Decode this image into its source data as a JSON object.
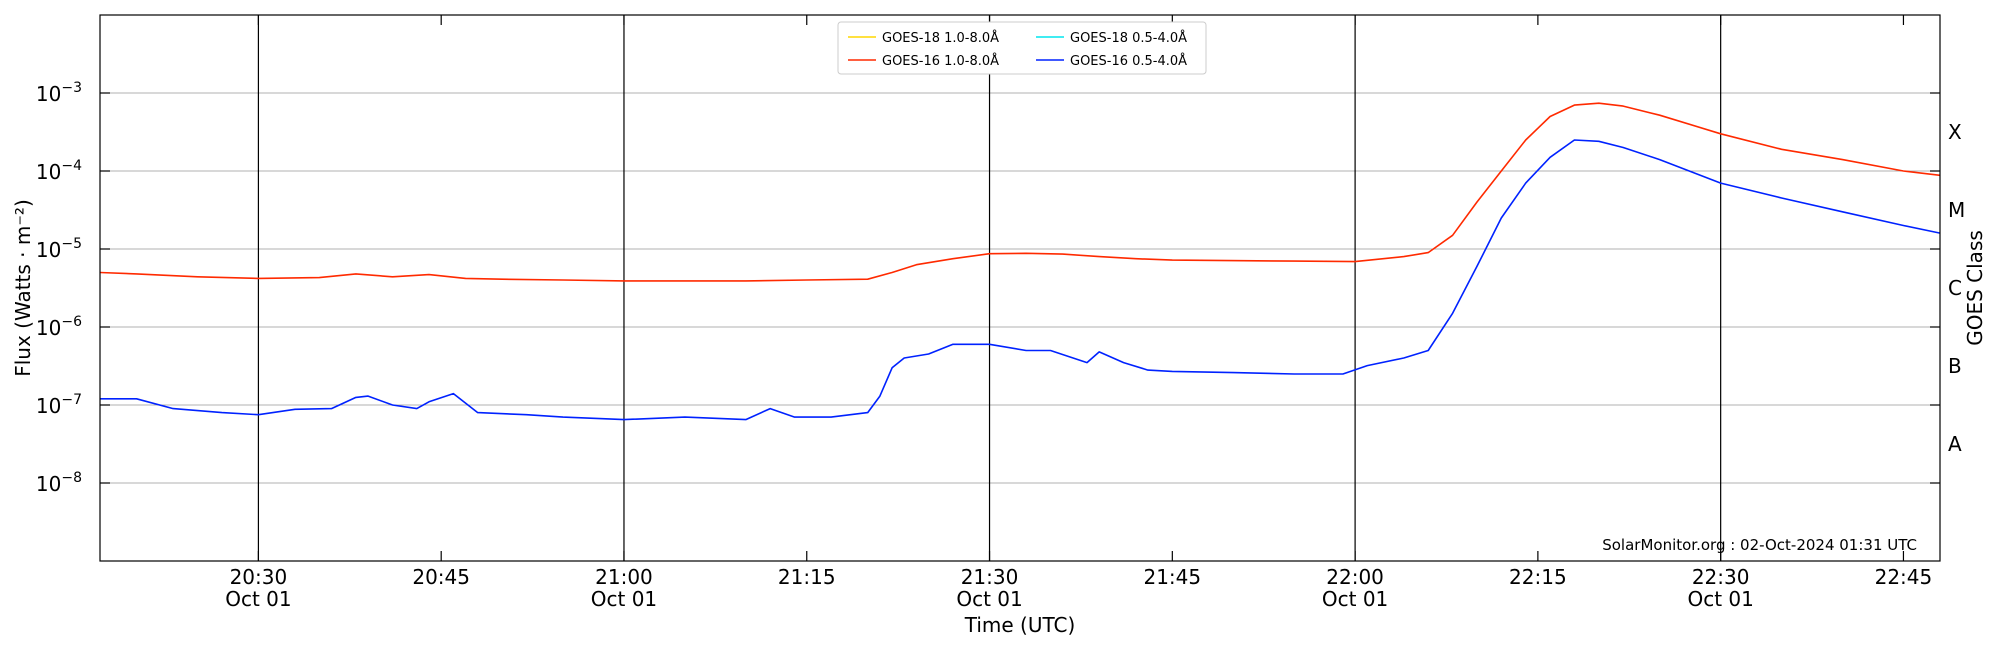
{
  "chart_data": {
    "type": "line",
    "title": "",
    "xlabel": "Time (UTC)",
    "ylabel": "Flux (Watts · m⁻²)",
    "ylabel_right": "GOES Class",
    "yscale": "log",
    "ylim": [
      1e-09,
      0.01
    ],
    "xlim": [
      "2024-10-01 20:17",
      "2024-10-01 22:48"
    ],
    "grid": "horizontal at decades",
    "legend_position": "top-center",
    "x_ticks": [
      {
        "time": "2024-10-01 20:30",
        "label": "20:30",
        "sublabel": "Oct 01",
        "vline": true
      },
      {
        "time": "2024-10-01 20:45",
        "label": "20:45",
        "sublabel": "",
        "vline": false
      },
      {
        "time": "2024-10-01 21:00",
        "label": "21:00",
        "sublabel": "Oct 01",
        "vline": true
      },
      {
        "time": "2024-10-01 21:15",
        "label": "21:15",
        "sublabel": "",
        "vline": false
      },
      {
        "time": "2024-10-01 21:30",
        "label": "21:30",
        "sublabel": "Oct 01",
        "vline": true
      },
      {
        "time": "2024-10-01 21:45",
        "label": "21:45",
        "sublabel": "",
        "vline": false
      },
      {
        "time": "2024-10-01 22:00",
        "label": "22:00",
        "sublabel": "Oct 01",
        "vline": true
      },
      {
        "time": "2024-10-01 22:15",
        "label": "22:15",
        "sublabel": "",
        "vline": false
      },
      {
        "time": "2024-10-01 22:30",
        "label": "22:30",
        "sublabel": "Oct 01",
        "vline": true
      },
      {
        "time": "2024-10-01 22:45",
        "label": "22:45",
        "sublabel": "",
        "vline": false
      }
    ],
    "y_ticks": [
      {
        "value": 0.001,
        "base": "10",
        "exp": "−3"
      },
      {
        "value": 0.0001,
        "base": "10",
        "exp": "−4"
      },
      {
        "value": 1e-05,
        "base": "10",
        "exp": "−5"
      },
      {
        "value": 1e-06,
        "base": "10",
        "exp": "−6"
      },
      {
        "value": 1e-07,
        "base": "10",
        "exp": "−7"
      },
      {
        "value": 1e-08,
        "base": "10",
        "exp": "−8"
      }
    ],
    "goes_classes": [
      {
        "label": "X",
        "value": 0.000316
      },
      {
        "label": "M",
        "value": 3.16e-05
      },
      {
        "label": "C",
        "value": 3.16e-06
      },
      {
        "label": "B",
        "value": 3.16e-07
      },
      {
        "label": "A",
        "value": 3.16e-08
      }
    ],
    "legend": [
      {
        "label": "GOES-18 1.0-8.0Å",
        "color": "#ffd700"
      },
      {
        "label": "GOES-18 0.5-4.0Å",
        "color": "#00e5ee"
      },
      {
        "label": "GOES-16 1.0-8.0Å",
        "color": "#ff2a00"
      },
      {
        "label": "GOES-16 0.5-4.0Å",
        "color": "#0022ff"
      }
    ],
    "series": [
      {
        "name": "GOES-16 1.0-8.0Å",
        "color": "#ff2a00",
        "x": [
          "2024-10-01 20:17",
          "2024-10-01 20:20",
          "2024-10-01 20:25",
          "2024-10-01 20:30",
          "2024-10-01 20:35",
          "2024-10-01 20:38",
          "2024-10-01 20:41",
          "2024-10-01 20:44",
          "2024-10-01 20:47",
          "2024-10-01 20:50",
          "2024-10-01 20:55",
          "2024-10-01 21:00",
          "2024-10-01 21:10",
          "2024-10-01 21:15",
          "2024-10-01 21:20",
          "2024-10-01 21:22",
          "2024-10-01 21:24",
          "2024-10-01 21:27",
          "2024-10-01 21:30",
          "2024-10-01 21:33",
          "2024-10-01 21:36",
          "2024-10-01 21:39",
          "2024-10-01 21:42",
          "2024-10-01 21:45",
          "2024-10-01 21:55",
          "2024-10-01 22:00",
          "2024-10-01 22:04",
          "2024-10-01 22:06",
          "2024-10-01 22:08",
          "2024-10-01 22:10",
          "2024-10-01 22:12",
          "2024-10-01 22:14",
          "2024-10-01 22:16",
          "2024-10-01 22:18",
          "2024-10-01 22:20",
          "2024-10-01 22:22",
          "2024-10-01 22:25",
          "2024-10-01 22:30",
          "2024-10-01 22:35",
          "2024-10-01 22:40",
          "2024-10-01 22:45",
          "2024-10-01 22:48"
        ],
        "y": [
          5e-06,
          4.8e-06,
          4.4e-06,
          4.2e-06,
          4.3e-06,
          4.8e-06,
          4.4e-06,
          4.7e-06,
          4.2e-06,
          4.1e-06,
          4e-06,
          3.9e-06,
          3.9e-06,
          4e-06,
          4.1e-06,
          5e-06,
          6.3e-06,
          7.5e-06,
          8.7e-06,
          8.8e-06,
          8.6e-06,
          8e-06,
          7.5e-06,
          7.2e-06,
          7e-06,
          6.9e-06,
          8e-06,
          9e-06,
          1.5e-05,
          4e-05,
          0.0001,
          0.00025,
          0.0005,
          0.0007,
          0.00074,
          0.00068,
          0.00052,
          0.0003,
          0.00019,
          0.00014,
          0.0001,
          8.8e-05
        ]
      },
      {
        "name": "GOES-16 0.5-4.0Å",
        "color": "#0022ff",
        "x": [
          "2024-10-01 20:17",
          "2024-10-01 20:20",
          "2024-10-01 20:23",
          "2024-10-01 20:27",
          "2024-10-01 20:30",
          "2024-10-01 20:33",
          "2024-10-01 20:36",
          "2024-10-01 20:38",
          "2024-10-01 20:39",
          "2024-10-01 20:41",
          "2024-10-01 20:43",
          "2024-10-01 20:44",
          "2024-10-01 20:46",
          "2024-10-01 20:48",
          "2024-10-01 20:52",
          "2024-10-01 20:55",
          "2024-10-01 21:00",
          "2024-10-01 21:05",
          "2024-10-01 21:10",
          "2024-10-01 21:12",
          "2024-10-01 21:14",
          "2024-10-01 21:17",
          "2024-10-01 21:20",
          "2024-10-01 21:21",
          "2024-10-01 21:22",
          "2024-10-01 21:23",
          "2024-10-01 21:25",
          "2024-10-01 21:27",
          "2024-10-01 21:30",
          "2024-10-01 21:33",
          "2024-10-01 21:35",
          "2024-10-01 21:38",
          "2024-10-01 21:39",
          "2024-10-01 21:41",
          "2024-10-01 21:43",
          "2024-10-01 21:45",
          "2024-10-01 21:50",
          "2024-10-01 21:55",
          "2024-10-01 21:59",
          "2024-10-01 22:01",
          "2024-10-01 22:04",
          "2024-10-01 22:06",
          "2024-10-01 22:08",
          "2024-10-01 22:10",
          "2024-10-01 22:12",
          "2024-10-01 22:14",
          "2024-10-01 22:16",
          "2024-10-01 22:18",
          "2024-10-01 22:20",
          "2024-10-01 22:22",
          "2024-10-01 22:25",
          "2024-10-01 22:30",
          "2024-10-01 22:35",
          "2024-10-01 22:40",
          "2024-10-01 22:45",
          "2024-10-01 22:48"
        ],
        "y": [
          1.2e-07,
          1.2e-07,
          9e-08,
          8e-08,
          7.5e-08,
          8.8e-08,
          9e-08,
          1.25e-07,
          1.3e-07,
          1e-07,
          9e-08,
          1.1e-07,
          1.4e-07,
          8e-08,
          7.5e-08,
          7e-08,
          6.5e-08,
          7e-08,
          6.5e-08,
          9e-08,
          7e-08,
          7e-08,
          8e-08,
          1.3e-07,
          3e-07,
          4e-07,
          4.5e-07,
          6e-07,
          6e-07,
          5e-07,
          5e-07,
          3.5e-07,
          4.8e-07,
          3.5e-07,
          2.8e-07,
          2.7e-07,
          2.6e-07,
          2.5e-07,
          2.5e-07,
          3.2e-07,
          4e-07,
          5e-07,
          1.5e-06,
          6e-06,
          2.5e-05,
          7e-05,
          0.00015,
          0.00025,
          0.00024,
          0.0002,
          0.00014,
          7e-05,
          4.5e-05,
          3e-05,
          2e-05,
          1.6e-05
        ]
      }
    ]
  },
  "credit_text": "SolarMonitor.org : 02-Oct-2024 01:31 UTC"
}
